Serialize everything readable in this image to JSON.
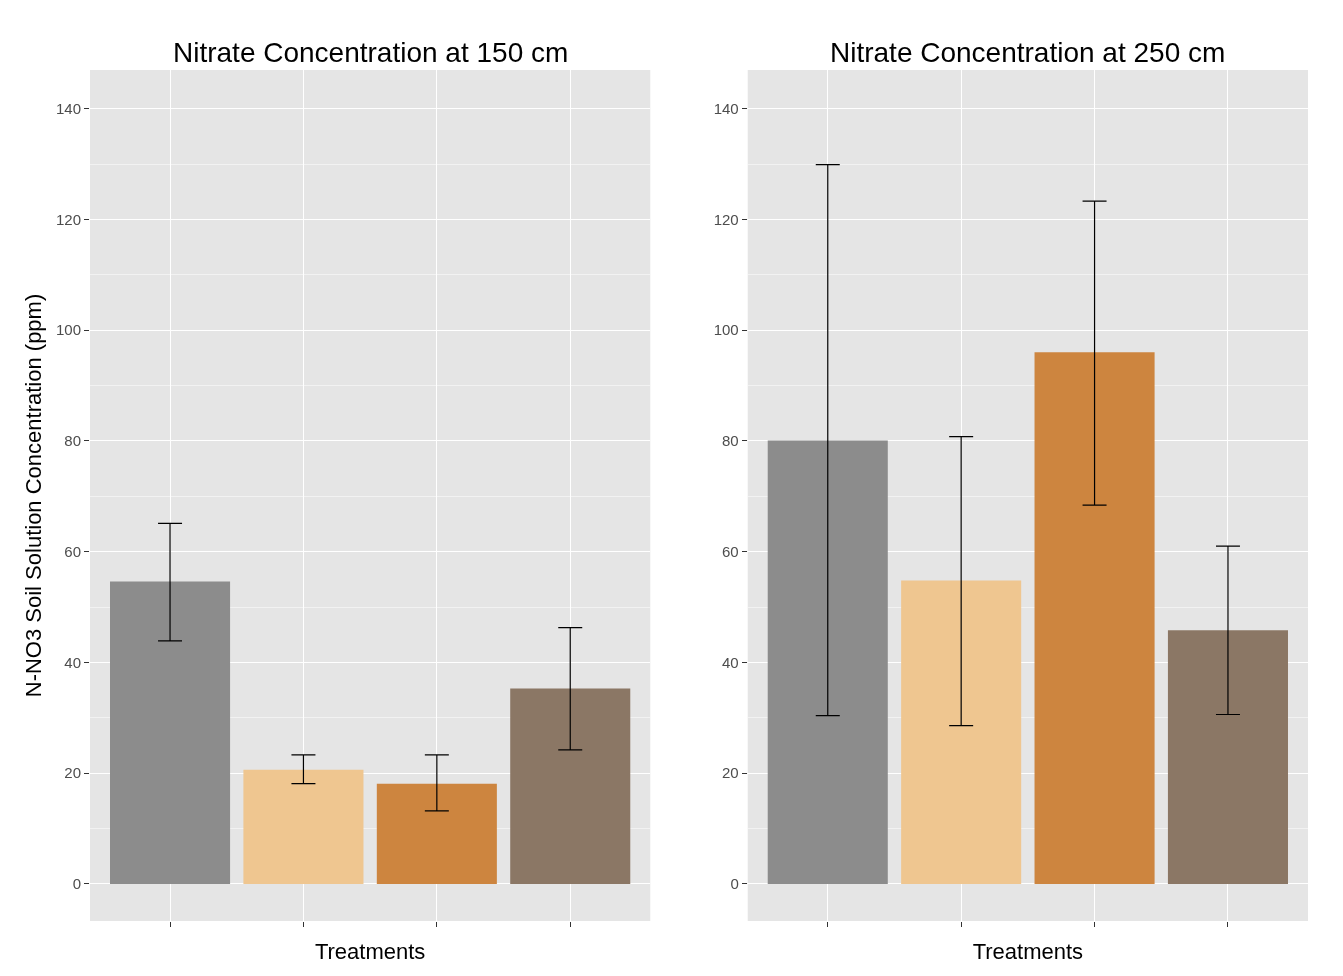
{
  "chart_data": [
    {
      "type": "bar",
      "title": "Nitrate Concentration at 150 cm",
      "xlabel": "Treatments",
      "ylabel": "N-NO3 Soil Solution Concentration (ppm)",
      "categories": [
        null,
        null,
        null,
        null
      ],
      "values": [
        54.6,
        20.6,
        18.1,
        35.3
      ],
      "colors": [
        "#8c8c8c",
        "#efc690",
        "#cd853f",
        "#8b7765"
      ],
      "errors": [
        [
          43.9,
          65.1
        ],
        [
          18.1,
          23.3
        ],
        [
          13.2,
          23.3
        ],
        [
          24.2,
          46.3
        ]
      ],
      "ylim": [
        -6.7,
        147
      ],
      "yticks": [
        0,
        20,
        40,
        60,
        80,
        100,
        120,
        140
      ],
      "grid": true,
      "tick_labels": "y"
    },
    {
      "type": "bar",
      "title": "Nitrate Concentration at 250 cm",
      "xlabel": "Treatments",
      "categories": [
        null,
        null,
        null,
        null
      ],
      "values": [
        80.1,
        54.8,
        96.0,
        45.8
      ],
      "colors": [
        "#8c8c8c",
        "#efc690",
        "#cd853f",
        "#8b7765"
      ],
      "errors": [
        [
          30.4,
          129.9
        ],
        [
          28.6,
          80.8
        ],
        [
          68.4,
          123.3
        ],
        [
          30.6,
          61.0
        ]
      ],
      "ylim": [
        -6.7,
        147
      ],
      "yticks": [
        0,
        20,
        40,
        60,
        80,
        100,
        120,
        140
      ],
      "grid": true,
      "tick_labels": "y"
    }
  ]
}
